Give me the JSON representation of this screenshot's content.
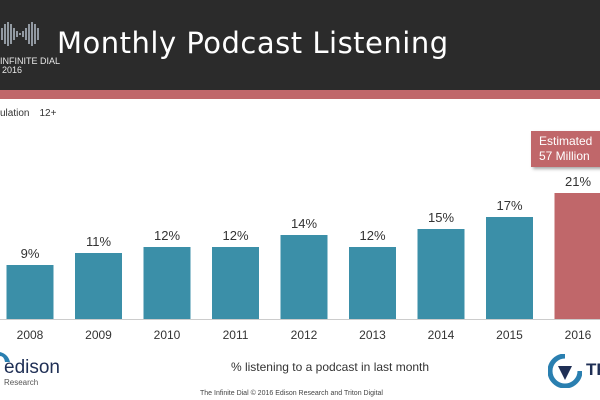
{
  "header": {
    "logo_line1": "INFINITE DIAL",
    "logo_line2": "2016",
    "title": "Monthly Podcast Listening",
    "stripe_color": "#c0676a",
    "background_color": "#2b2b2b"
  },
  "population_label": {
    "text": "ulation",
    "age": "12+"
  },
  "estimate_box": {
    "line1": "Estimated",
    "line2": "57 Million"
  },
  "chart_data": {
    "type": "bar",
    "categories": [
      "2008",
      "2009",
      "2010",
      "2011",
      "2012",
      "2013",
      "2014",
      "2015",
      "2016"
    ],
    "values": [
      9,
      11,
      12,
      12,
      14,
      12,
      15,
      17,
      21
    ],
    "value_labels": [
      "9%",
      "11%",
      "12%",
      "12%",
      "14%",
      "12%",
      "15%",
      "17%",
      "21%"
    ],
    "title": "Monthly Podcast Listening",
    "xlabel": "% listening to a podcast in last month",
    "ylabel": "",
    "ylim": [
      0,
      21
    ],
    "grid": false,
    "bar_color": "#3b8fa8",
    "highlight_color": "#c0676a",
    "highlight_index": 8
  },
  "subtitle": "% listening to a podcast in last month",
  "logos": {
    "edison": "edison",
    "edison_sub": "Research",
    "triton": "TRI"
  },
  "footer": "The Infinite Dial  © 2016 Edison Research and Triton Digital"
}
